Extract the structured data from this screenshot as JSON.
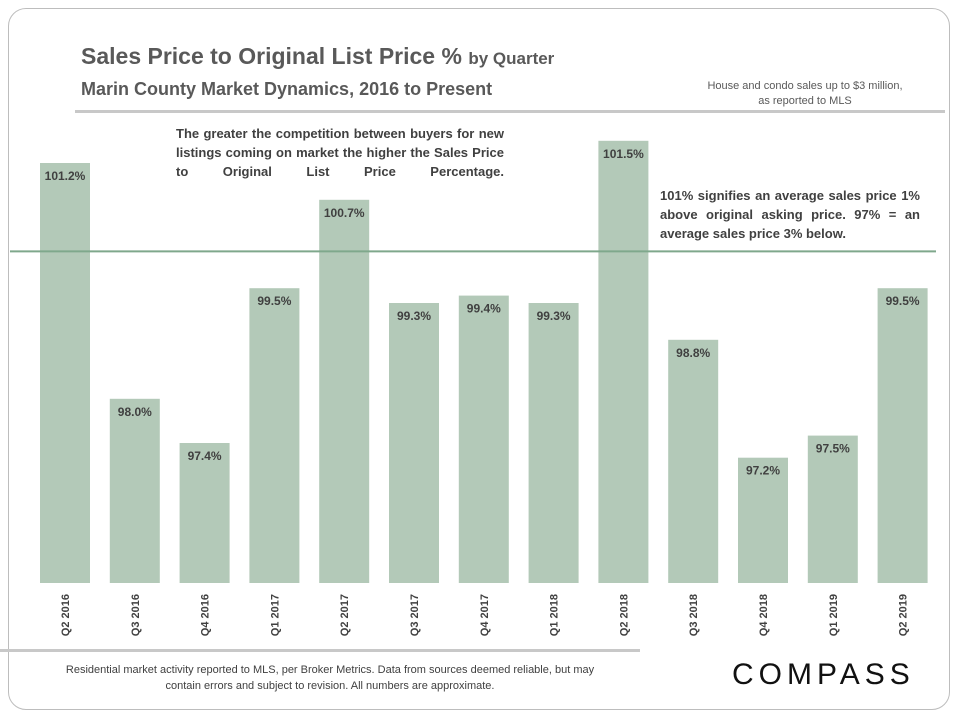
{
  "header": {
    "title_main": "Sales Price to Original List Price %",
    "title_small": "by Quarter",
    "subtitle": "Marin County Market Dynamics,  2016 to Present",
    "note": "House and condo sales up to $3 million, as reported to MLS"
  },
  "callouts": {
    "competition": "The greater the competition between buyers for new listings coming on market the higher the Sales Price to Original List Price Percentage.",
    "explanation": "101% signifies an average sales price 1% above original asking price. 97% = an average sales price 3% below."
  },
  "footer": {
    "disclaimer": "Residential market activity reported to MLS, per Broker Metrics. Data from sources deemed reliable, but may contain errors and subject to revision. All numbers are approximate.",
    "logo": "COMPASS"
  },
  "colors": {
    "bar": "#b3c9b8",
    "reference_line": "#7fa88c"
  },
  "chart_data": {
    "type": "bar",
    "categories": [
      "Q2 2016",
      "Q3 2016",
      "Q4 2016",
      "Q1 2017",
      "Q2 2017",
      "Q3 2017",
      "Q4 2017",
      "Q1 2018",
      "Q2 2018",
      "Q3 2018",
      "Q4 2018",
      "Q1 2019",
      "Q2 2019"
    ],
    "values": [
      101.2,
      98.0,
      97.4,
      99.5,
      100.7,
      99.3,
      99.4,
      99.3,
      101.5,
      98.8,
      97.2,
      97.5,
      99.5
    ],
    "labels": [
      "101.2%",
      "98.0%",
      "97.4%",
      "99.5%",
      "100.7%",
      "99.3%",
      "99.4%",
      "99.3%",
      "101.5%",
      "98.8%",
      "97.2%",
      "97.5%",
      "99.5%"
    ],
    "title": "Sales Price to Original List Price % by Quarter",
    "xlabel": "",
    "ylabel": "",
    "ylim": [
      95.5,
      102.0
    ],
    "reference_line": 100,
    "grid": false,
    "legend": "none"
  }
}
